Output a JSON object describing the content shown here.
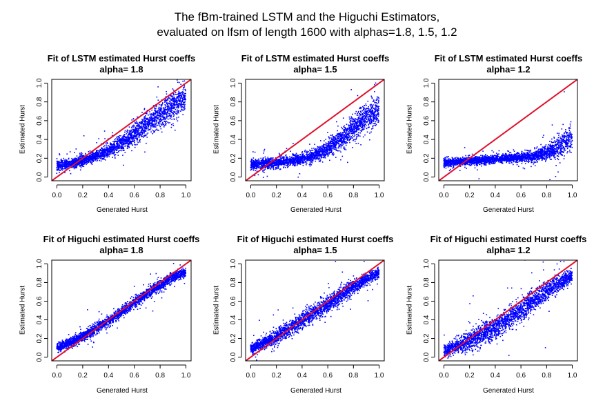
{
  "title_lines": [
    "The fBm-trained LSTM and the Higuchi Estimators,",
    "evaluated on lfsm of length 1600 with alphas=1.8, 1.5, 1.2"
  ],
  "colors": {
    "points": "#0000ff",
    "reference_line": "#e0112b",
    "axes": "#000000"
  },
  "chart_data": [
    {
      "type": "scatter",
      "title": "Fit of LSTM estimated Hurst coeffs",
      "subtitle": "alpha= 1.8",
      "xlabel": "Generated Hurst",
      "ylabel": "Estimated Hurst",
      "xlim": [
        0,
        1
      ],
      "ylim": [
        0,
        1
      ],
      "xticks": [
        "0.0",
        "0.2",
        "0.4",
        "0.6",
        "0.8",
        "1.0"
      ],
      "yticks": [
        "0.0",
        "0.2",
        "0.4",
        "0.6",
        "0.8",
        "1.0"
      ],
      "reference_line": "y = x",
      "trend": {
        "x": [
          0.0,
          0.1,
          0.2,
          0.3,
          0.4,
          0.5,
          0.6,
          0.7,
          0.8,
          0.9,
          1.0
        ],
        "y": [
          0.12,
          0.14,
          0.17,
          0.22,
          0.28,
          0.36,
          0.45,
          0.55,
          0.66,
          0.76,
          0.86
        ]
      },
      "spread": [
        0.05,
        0.05,
        0.05,
        0.05,
        0.06,
        0.08,
        0.1,
        0.12,
        0.13,
        0.14,
        0.12
      ]
    },
    {
      "type": "scatter",
      "title": "Fit of LSTM estimated Hurst coeffs",
      "subtitle": "alpha= 1.5",
      "xlabel": "Generated Hurst",
      "ylabel": "Estimated Hurst",
      "xlim": [
        0,
        1
      ],
      "ylim": [
        0,
        1
      ],
      "xticks": [
        "0.0",
        "0.2",
        "0.4",
        "0.6",
        "0.8",
        "1.0"
      ],
      "yticks": [
        "0.0",
        "0.2",
        "0.4",
        "0.6",
        "0.8",
        "1.0"
      ],
      "reference_line": "y = x",
      "trend": {
        "x": [
          0.0,
          0.1,
          0.2,
          0.3,
          0.4,
          0.5,
          0.6,
          0.7,
          0.8,
          0.9,
          1.0
        ],
        "y": [
          0.13,
          0.14,
          0.15,
          0.17,
          0.19,
          0.23,
          0.3,
          0.4,
          0.52,
          0.63,
          0.72
        ]
      },
      "spread": [
        0.05,
        0.05,
        0.05,
        0.05,
        0.05,
        0.06,
        0.08,
        0.1,
        0.12,
        0.14,
        0.15
      ]
    },
    {
      "type": "scatter",
      "title": "Fit of LSTM estimated Hurst coeffs",
      "subtitle": "alpha= 1.2",
      "xlabel": "Generated Hurst",
      "ylabel": "Estimated Hurst",
      "xlim": [
        0,
        1
      ],
      "ylim": [
        0,
        1
      ],
      "xticks": [
        "0.0",
        "0.2",
        "0.4",
        "0.6",
        "0.8",
        "1.0"
      ],
      "yticks": [
        "0.0",
        "0.2",
        "0.4",
        "0.6",
        "0.8",
        "1.0"
      ],
      "reference_line": "y = x",
      "trend": {
        "x": [
          0.0,
          0.1,
          0.2,
          0.3,
          0.4,
          0.5,
          0.6,
          0.7,
          0.8,
          0.9,
          1.0
        ],
        "y": [
          0.15,
          0.16,
          0.17,
          0.18,
          0.19,
          0.2,
          0.21,
          0.22,
          0.26,
          0.33,
          0.42
        ]
      },
      "spread": [
        0.04,
        0.04,
        0.04,
        0.04,
        0.04,
        0.04,
        0.04,
        0.05,
        0.07,
        0.1,
        0.12
      ]
    },
    {
      "type": "scatter",
      "title": "Fit of Higuchi estimated Hurst coeffs",
      "subtitle": "alpha= 1.8",
      "xlabel": "Generated Hurst",
      "ylabel": "Estimated Hurst",
      "xlim": [
        0,
        1
      ],
      "ylim": [
        0,
        1
      ],
      "xticks": [
        "0.0",
        "0.2",
        "0.4",
        "0.6",
        "0.8",
        "1.0"
      ],
      "yticks": [
        "0.0",
        "0.2",
        "0.4",
        "0.6",
        "0.8",
        "1.0"
      ],
      "reference_line": "y = x",
      "trend": {
        "x": [
          0.0,
          0.1,
          0.2,
          0.3,
          0.4,
          0.5,
          0.6,
          0.7,
          0.8,
          0.9,
          1.0
        ],
        "y": [
          0.1,
          0.15,
          0.22,
          0.3,
          0.39,
          0.48,
          0.58,
          0.68,
          0.77,
          0.85,
          0.91
        ]
      },
      "spread": [
        0.04,
        0.05,
        0.05,
        0.05,
        0.05,
        0.05,
        0.05,
        0.05,
        0.05,
        0.05,
        0.04
      ]
    },
    {
      "type": "scatter",
      "title": "Fit of Higuchi estimated Hurst coeffs",
      "subtitle": "alpha= 1.5",
      "xlabel": "Generated Hurst",
      "ylabel": "Estimated Hurst",
      "xlim": [
        0,
        1
      ],
      "ylim": [
        0,
        1
      ],
      "xticks": [
        "0.0",
        "0.2",
        "0.4",
        "0.6",
        "0.8",
        "1.0"
      ],
      "yticks": [
        "0.0",
        "0.2",
        "0.4",
        "0.6",
        "0.8",
        "1.0"
      ],
      "reference_line": "y = x",
      "trend": {
        "x": [
          0.0,
          0.1,
          0.2,
          0.3,
          0.4,
          0.5,
          0.6,
          0.7,
          0.8,
          0.9,
          1.0
        ],
        "y": [
          0.09,
          0.15,
          0.22,
          0.3,
          0.39,
          0.48,
          0.57,
          0.66,
          0.75,
          0.84,
          0.9
        ]
      },
      "spread": [
        0.05,
        0.06,
        0.07,
        0.08,
        0.08,
        0.08,
        0.08,
        0.08,
        0.07,
        0.06,
        0.05
      ]
    },
    {
      "type": "scatter",
      "title": "Fit of Higuchi estimated Hurst coeffs",
      "subtitle": "alpha= 1.2",
      "xlabel": "Generated Hurst",
      "ylabel": "Estimated Hurst",
      "xlim": [
        0,
        1
      ],
      "ylim": [
        0,
        1
      ],
      "xticks": [
        "0.0",
        "0.2",
        "0.4",
        "0.6",
        "0.8",
        "1.0"
      ],
      "yticks": [
        "0.0",
        "0.2",
        "0.4",
        "0.6",
        "0.8",
        "1.0"
      ],
      "reference_line": "y = x",
      "trend": {
        "x": [
          0.0,
          0.1,
          0.2,
          0.3,
          0.4,
          0.5,
          0.6,
          0.7,
          0.8,
          0.9,
          1.0
        ],
        "y": [
          0.06,
          0.11,
          0.17,
          0.24,
          0.32,
          0.41,
          0.5,
          0.6,
          0.7,
          0.79,
          0.87
        ]
      },
      "spread": [
        0.05,
        0.07,
        0.09,
        0.1,
        0.11,
        0.11,
        0.11,
        0.1,
        0.09,
        0.08,
        0.06
      ]
    }
  ]
}
